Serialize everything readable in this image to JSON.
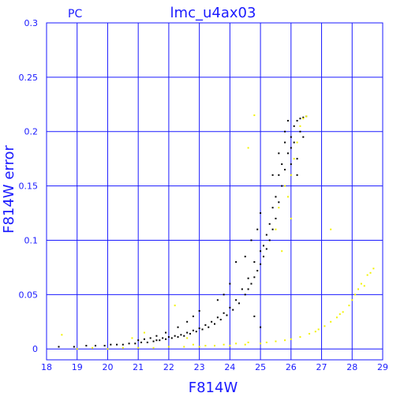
{
  "chart_data": {
    "type": "scatter",
    "title": "lmc_u4ax03",
    "corner_label": "PC",
    "xlabel": "F814W",
    "ylabel": "F814W error",
    "xlim": [
      18,
      29
    ],
    "ylim": [
      -0.01,
      0.3
    ],
    "x_ticks": [
      18,
      19,
      20,
      21,
      22,
      23,
      24,
      25,
      26,
      27,
      28,
      29
    ],
    "y_ticks": [
      0,
      0.05,
      0.1,
      0.15,
      0.2,
      0.25,
      0.3
    ],
    "grid": true,
    "colors": {
      "axes": "#1a1aff",
      "grid": "#1a1aff",
      "black_series": "#000000",
      "yellow_series": "#f2f200"
    },
    "series": [
      {
        "color": "black",
        "points": [
          [
            18.4,
            0.002
          ],
          [
            18.9,
            0.002
          ],
          [
            19.3,
            0.003
          ],
          [
            19.6,
            0.003
          ],
          [
            19.9,
            0.003
          ],
          [
            20.1,
            0.004
          ],
          [
            20.3,
            0.004
          ],
          [
            20.5,
            0.004
          ],
          [
            20.7,
            0.005
          ],
          [
            20.9,
            0.005
          ],
          [
            21.1,
            0.006
          ],
          [
            21.3,
            0.006
          ],
          [
            21.5,
            0.007
          ],
          [
            21.7,
            0.008
          ],
          [
            21.9,
            0.009
          ],
          [
            22.1,
            0.01
          ],
          [
            22.3,
            0.011
          ],
          [
            22.5,
            0.012
          ],
          [
            22.7,
            0.014
          ],
          [
            22.9,
            0.016
          ],
          [
            23.1,
            0.018
          ],
          [
            23.3,
            0.02
          ],
          [
            23.5,
            0.023
          ],
          [
            23.7,
            0.027
          ],
          [
            23.9,
            0.031
          ],
          [
            24.1,
            0.036
          ],
          [
            24.3,
            0.042
          ],
          [
            24.5,
            0.05
          ],
          [
            24.6,
            0.055
          ],
          [
            24.7,
            0.06
          ],
          [
            24.8,
            0.066
          ],
          [
            24.9,
            0.072
          ],
          [
            25.0,
            0.078
          ],
          [
            25.1,
            0.085
          ],
          [
            25.2,
            0.092
          ],
          [
            25.3,
            0.1
          ],
          [
            25.4,
            0.11
          ],
          [
            25.5,
            0.12
          ],
          [
            25.6,
            0.135
          ],
          [
            25.7,
            0.15
          ],
          [
            25.8,
            0.165
          ],
          [
            25.9,
            0.18
          ],
          [
            26.0,
            0.195
          ],
          [
            26.1,
            0.205
          ],
          [
            26.2,
            0.21
          ],
          [
            26.3,
            0.212
          ],
          [
            26.4,
            0.213
          ],
          [
            26.5,
            0.214
          ],
          [
            25.8,
            0.2
          ],
          [
            25.9,
            0.21
          ],
          [
            26.0,
            0.185
          ],
          [
            26.1,
            0.19
          ],
          [
            26.2,
            0.175
          ],
          [
            26.3,
            0.2
          ],
          [
            26.4,
            0.195
          ],
          [
            25.7,
            0.17
          ],
          [
            25.6,
            0.16
          ],
          [
            25.5,
            0.14
          ],
          [
            25.4,
            0.13
          ],
          [
            25.3,
            0.115
          ],
          [
            25.2,
            0.105
          ],
          [
            25.1,
            0.095
          ],
          [
            25.0,
            0.09
          ],
          [
            24.8,
            0.08
          ],
          [
            24.6,
            0.065
          ],
          [
            24.4,
            0.055
          ],
          [
            24.2,
            0.045
          ],
          [
            24.0,
            0.038
          ],
          [
            23.8,
            0.033
          ],
          [
            23.6,
            0.029
          ],
          [
            23.4,
            0.025
          ],
          [
            23.2,
            0.022
          ],
          [
            23.0,
            0.019
          ],
          [
            22.8,
            0.017
          ],
          [
            22.6,
            0.015
          ],
          [
            22.4,
            0.013
          ],
          [
            22.2,
            0.012
          ],
          [
            22.0,
            0.011
          ],
          [
            21.8,
            0.01
          ],
          [
            21.6,
            0.008
          ],
          [
            24.7,
            0.1
          ],
          [
            24.9,
            0.11
          ],
          [
            25.0,
            0.125
          ],
          [
            24.5,
            0.085
          ],
          [
            24.2,
            0.08
          ],
          [
            24.0,
            0.06
          ],
          [
            23.6,
            0.045
          ],
          [
            23.0,
            0.035
          ],
          [
            25.4,
            0.16
          ],
          [
            25.6,
            0.18
          ],
          [
            25.8,
            0.19
          ],
          [
            26.0,
            0.17
          ],
          [
            26.2,
            0.16
          ],
          [
            24.8,
            0.03
          ],
          [
            25.0,
            0.02
          ],
          [
            23.8,
            0.05
          ],
          [
            22.8,
            0.03
          ],
          [
            22.6,
            0.025
          ],
          [
            22.3,
            0.02
          ],
          [
            21.9,
            0.015
          ],
          [
            21.6,
            0.012
          ],
          [
            21.4,
            0.01
          ],
          [
            21.2,
            0.009
          ],
          [
            21.0,
            0.008
          ]
        ]
      },
      {
        "color": "yellow",
        "points": [
          [
            18.5,
            0.013
          ],
          [
            19.0,
            0.0
          ],
          [
            19.5,
            0.001
          ],
          [
            20.0,
            0.0
          ],
          [
            20.5,
            0.001
          ],
          [
            21.0,
            0.001
          ],
          [
            21.5,
            0.001
          ],
          [
            22.0,
            0.002
          ],
          [
            22.5,
            0.002
          ],
          [
            23.0,
            0.002
          ],
          [
            23.5,
            0.003
          ],
          [
            24.0,
            0.003
          ],
          [
            24.5,
            0.004
          ],
          [
            25.0,
            0.005
          ],
          [
            25.5,
            0.007
          ],
          [
            26.0,
            0.009
          ],
          [
            26.3,
            0.011
          ],
          [
            26.6,
            0.014
          ],
          [
            26.9,
            0.018
          ],
          [
            27.1,
            0.021
          ],
          [
            27.3,
            0.025
          ],
          [
            27.5,
            0.029
          ],
          [
            27.7,
            0.034
          ],
          [
            27.9,
            0.04
          ],
          [
            28.0,
            0.045
          ],
          [
            28.1,
            0.05
          ],
          [
            28.2,
            0.055
          ],
          [
            28.3,
            0.06
          ],
          [
            28.5,
            0.068
          ],
          [
            28.7,
            0.074
          ],
          [
            24.8,
            0.215
          ],
          [
            24.6,
            0.185
          ],
          [
            25.5,
            0.11
          ],
          [
            25.6,
            0.13
          ],
          [
            25.8,
            0.15
          ],
          [
            26.0,
            0.16
          ],
          [
            26.1,
            0.175
          ],
          [
            26.2,
            0.19
          ],
          [
            26.3,
            0.205
          ],
          [
            26.4,
            0.212
          ],
          [
            26.5,
            0.214
          ],
          [
            25.9,
            0.14
          ],
          [
            26.0,
            0.12
          ],
          [
            25.7,
            0.09
          ],
          [
            27.3,
            0.11
          ],
          [
            22.6,
            0.01
          ],
          [
            21.2,
            0.015
          ],
          [
            22.8,
            0.004
          ],
          [
            23.2,
            0.003
          ],
          [
            23.8,
            0.004
          ],
          [
            24.2,
            0.005
          ],
          [
            24.6,
            0.006
          ],
          [
            25.2,
            0.006
          ],
          [
            25.8,
            0.008
          ],
          [
            26.8,
            0.016
          ],
          [
            27.6,
            0.032
          ],
          [
            28.4,
            0.058
          ],
          [
            28.6,
            0.07
          ],
          [
            22.2,
            0.04
          ],
          [
            20.8,
            0.01
          ]
        ]
      }
    ]
  }
}
